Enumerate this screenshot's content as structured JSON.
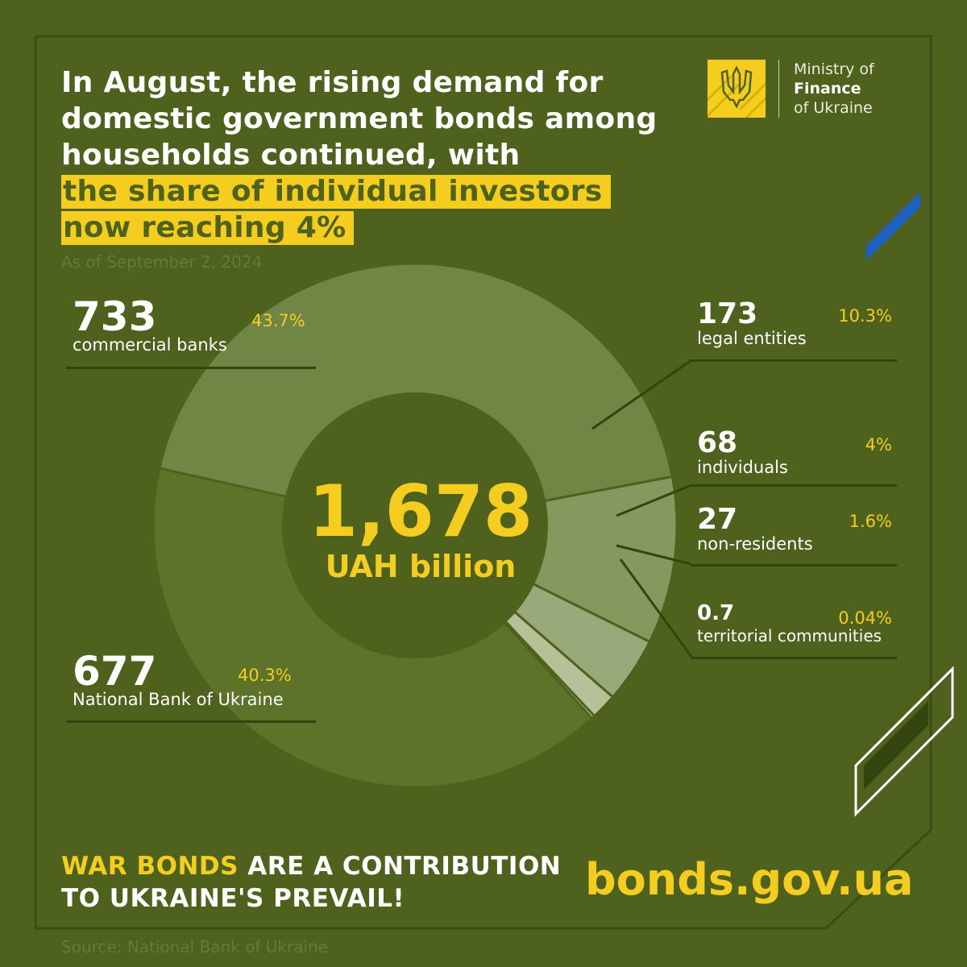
{
  "headline": {
    "lines": [
      "In August, the rising demand for",
      "domestic government bonds among",
      "households continued, with"
    ],
    "highlight_lines": [
      "the share of individual investors",
      "now reaching 4%"
    ]
  },
  "date": "As of September 2, 2024",
  "logo": {
    "line1": "Ministry of",
    "line2": "Finance",
    "line3": "of Ukraine"
  },
  "center": {
    "value": "1,678",
    "unit": "UAH billion"
  },
  "chart_data": {
    "type": "pie",
    "title": "",
    "total": 1678,
    "unit": "UAH billion",
    "slices": [
      {
        "label": "commercial banks",
        "value": 733,
        "value_text": "733",
        "percent": 43.7,
        "percent_text": "43.7%"
      },
      {
        "label": "legal entities",
        "value": 173,
        "value_text": "173",
        "percent": 10.3,
        "percent_text": "10.3%"
      },
      {
        "label": "individuals",
        "value": 68,
        "value_text": "68",
        "percent": 4.0,
        "percent_text": "4%"
      },
      {
        "label": "non-residents",
        "value": 27,
        "value_text": "27",
        "percent": 1.6,
        "percent_text": "1.6%"
      },
      {
        "label": "territorial communities",
        "value": 0.7,
        "value_text": "0.7",
        "percent": 0.04,
        "percent_text": "0.04%"
      },
      {
        "label": "National Bank of Ukraine",
        "value": 677,
        "value_text": "677",
        "percent": 40.3,
        "percent_text": "40.3%"
      }
    ]
  },
  "colors": {
    "background": "#4e621d",
    "accent_yellow": "#f5cd1e",
    "accent_blue": "#1f5fc4",
    "slice_commercial_banks": "#6f8645",
    "slice_legal_entities": "#87985e",
    "slice_individuals": "#9aa979",
    "slice_non_residents": "#b5c196",
    "slice_territorial_communities": "#d8e0c2",
    "slice_national_bank": "#5c7329"
  },
  "slogan": {
    "highlight": "WAR BONDS",
    "rest_line1": " ARE A CONTRIBUTION",
    "line2": "TO UKRAINE'S PREVAIL!"
  },
  "website": "bonds.gov.ua",
  "source": "Source: National Bank of Ukraine"
}
